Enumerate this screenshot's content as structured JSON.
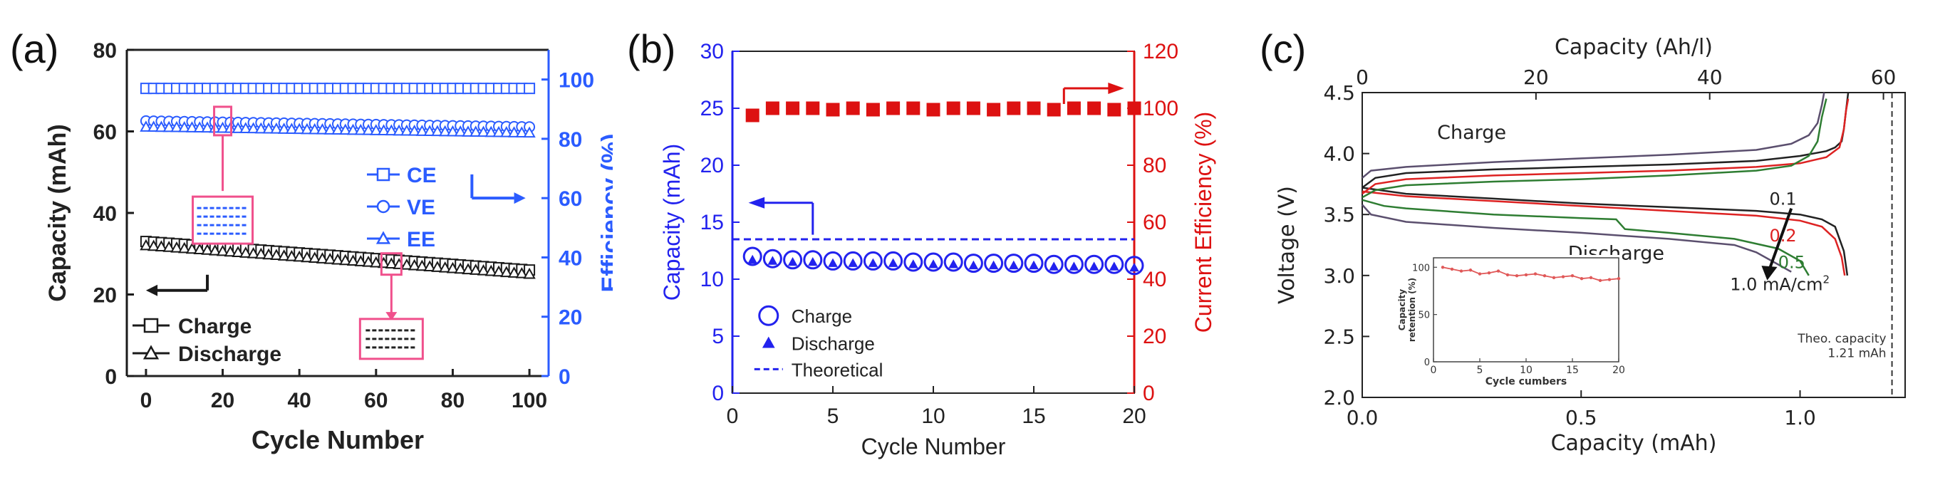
{
  "chart_data": [
    {
      "panel_label": "(a)",
      "type": "scatter",
      "title": "",
      "xlabel": "Cycle Number",
      "ylabel": "Capacity (mAh)",
      "y2label": "Efficiency (%)",
      "xlim": [
        -5,
        105
      ],
      "ylim": [
        0,
        80
      ],
      "y2lim": [
        0,
        110
      ],
      "xticks": [
        0,
        20,
        40,
        60,
        80,
        100
      ],
      "yticks": [
        0,
        20,
        40,
        60,
        80
      ],
      "y2ticks": [
        0,
        20,
        40,
        60,
        80,
        100
      ],
      "colors": {
        "left": "#1a1a1a",
        "right": "#2b5cff",
        "highlight": "#f0508c"
      },
      "series": [
        {
          "name": "Charge",
          "axis": "left",
          "marker": "square",
          "x_start": 0,
          "x_end": 100,
          "y_start": 33.0,
          "y_end": 26.0
        },
        {
          "name": "Discharge",
          "axis": "left",
          "marker": "triangle",
          "x_start": 0,
          "x_end": 100,
          "y_start": 32.0,
          "y_end": 25.0
        },
        {
          "name": "CE",
          "axis": "right",
          "marker": "square",
          "x_start": 0,
          "x_end": 100,
          "y_start": 97,
          "y_end": 97
        },
        {
          "name": "VE",
          "axis": "right",
          "marker": "circle",
          "x_start": 0,
          "x_end": 100,
          "y_start": 86,
          "y_end": 84
        },
        {
          "name": "EE",
          "axis": "right",
          "marker": "triangle",
          "x_start": 0,
          "x_end": 100,
          "y_start": 84,
          "y_end": 82
        }
      ],
      "legend_left": [
        "Charge",
        "Discharge"
      ],
      "legend_right": [
        "CE",
        "VE",
        "EE"
      ]
    },
    {
      "panel_label": "(b)",
      "type": "scatter",
      "title": "",
      "xlabel": "Cycle Number",
      "ylabel": "Capacity (mAh)",
      "y2label": "Current Efficiency (%)",
      "xlim": [
        0,
        20
      ],
      "ylim": [
        0,
        30
      ],
      "y2lim": [
        0,
        120
      ],
      "xticks": [
        0,
        5,
        10,
        15,
        20
      ],
      "yticks": [
        0,
        5,
        10,
        15,
        20,
        25,
        30
      ],
      "y2ticks": [
        0,
        20,
        40,
        60,
        80,
        100,
        120
      ],
      "colors": {
        "left": "#2222ee",
        "right": "#dd1111"
      },
      "x": [
        1,
        2,
        3,
        4,
        5,
        6,
        7,
        8,
        9,
        10,
        11,
        12,
        13,
        14,
        15,
        16,
        17,
        18,
        19,
        20
      ],
      "series": [
        {
          "name": "Charge",
          "axis": "left",
          "marker": "open-circle",
          "values": [
            12.0,
            11.8,
            11.7,
            11.7,
            11.6,
            11.6,
            11.6,
            11.6,
            11.5,
            11.5,
            11.5,
            11.4,
            11.4,
            11.4,
            11.4,
            11.3,
            11.3,
            11.3,
            11.3,
            11.2
          ]
        },
        {
          "name": "Discharge",
          "axis": "left",
          "marker": "triangle",
          "values": [
            11.7,
            11.6,
            11.5,
            11.5,
            11.4,
            11.4,
            11.4,
            11.4,
            11.3,
            11.3,
            11.3,
            11.2,
            11.2,
            11.2,
            11.2,
            11.1,
            11.1,
            11.1,
            11.1,
            11.0
          ]
        },
        {
          "name": "Current Efficiency",
          "axis": "right",
          "marker": "square",
          "values": [
            97.5,
            100,
            100,
            100,
            99.5,
            100,
            99.5,
            100,
            100,
            99.5,
            100,
            100,
            99.5,
            100,
            100,
            99.5,
            100,
            100,
            99.5,
            100
          ]
        }
      ],
      "theoretical": {
        "name": "Theoretical",
        "value": 13.5
      },
      "legend": [
        "Charge",
        "Discharge",
        "Theoretical"
      ]
    },
    {
      "panel_label": "(c)",
      "type": "line",
      "title": "",
      "xlabel": "Capacity (mAh)",
      "x2label": "Capacity (Ah/l)",
      "ylabel": "Voltage (V)",
      "xlim": [
        0,
        1.24
      ],
      "ylim": [
        2.0,
        4.5
      ],
      "xticks": [
        0.0,
        0.5,
        1.0
      ],
      "x2ticks": [
        0,
        20,
        40,
        60
      ],
      "yticks": [
        2.0,
        2.5,
        3.0,
        3.5,
        4.0,
        4.5
      ],
      "x2_per_mah": 50.4,
      "rate_unit": "mA/cm",
      "rate_superscript": "2",
      "annotations": {
        "charge": "Charge",
        "discharge": "Discharge",
        "theo_line1": "Theo. capacity",
        "theo_line2": "1.21 mAh"
      },
      "theoretical_x": 1.21,
      "series": [
        {
          "name": "0.1",
          "label": "0.1",
          "color": "#222222",
          "charge_x": [
            0,
            0.03,
            0.1,
            0.3,
            0.5,
            0.7,
            0.9,
            1.0,
            1.06,
            1.08,
            1.095,
            1.1,
            1.105,
            1.11
          ],
          "charge_y": [
            3.72,
            3.8,
            3.84,
            3.87,
            3.89,
            3.91,
            3.94,
            3.98,
            4.02,
            4.05,
            4.1,
            4.2,
            4.35,
            4.5
          ],
          "discharge_x": [
            0,
            0.1,
            0.3,
            0.5,
            0.7,
            0.9,
            1.0,
            1.05,
            1.08,
            1.1,
            1.108
          ],
          "discharge_y": [
            3.72,
            3.67,
            3.63,
            3.59,
            3.56,
            3.53,
            3.5,
            3.46,
            3.4,
            3.2,
            3.0
          ]
        },
        {
          "name": "0.2",
          "label": "0.2",
          "color": "#dd2222",
          "charge_x": [
            0,
            0.03,
            0.1,
            0.3,
            0.5,
            0.7,
            0.9,
            1.0,
            1.06,
            1.09,
            1.1,
            1.105,
            1.11
          ],
          "charge_y": [
            3.67,
            3.75,
            3.79,
            3.82,
            3.84,
            3.86,
            3.89,
            3.92,
            3.97,
            4.05,
            4.2,
            4.35,
            4.45
          ],
          "discharge_x": [
            0,
            0.1,
            0.3,
            0.5,
            0.7,
            0.9,
            1.0,
            1.05,
            1.08,
            1.095,
            1.102
          ],
          "discharge_y": [
            3.69,
            3.65,
            3.61,
            3.57,
            3.53,
            3.49,
            3.45,
            3.4,
            3.3,
            3.15,
            3.0
          ]
        },
        {
          "name": "0.5",
          "label": "0.5",
          "color": "#2e7d32",
          "charge_x": [
            0,
            0.03,
            0.1,
            0.3,
            0.5,
            0.7,
            0.9,
            0.98,
            1.02,
            1.04,
            1.05,
            1.06
          ],
          "charge_y": [
            3.64,
            3.7,
            3.74,
            3.77,
            3.79,
            3.82,
            3.86,
            3.9,
            3.98,
            4.1,
            4.3,
            4.45
          ],
          "discharge_x": [
            0,
            0.05,
            0.1,
            0.3,
            0.5,
            0.58,
            0.6,
            0.7,
            0.85,
            0.95,
            1.0,
            1.02
          ],
          "discharge_y": [
            3.62,
            3.57,
            3.55,
            3.5,
            3.47,
            3.46,
            3.38,
            3.35,
            3.3,
            3.22,
            3.12,
            3.0
          ]
        },
        {
          "name": "1.0",
          "label": "1.0",
          "color": "#5b4f6e",
          "charge_x": [
            0,
            0.02,
            0.1,
            0.3,
            0.5,
            0.7,
            0.9,
            0.98,
            1.02,
            1.04,
            1.05,
            1.055
          ],
          "charge_y": [
            3.8,
            3.86,
            3.89,
            3.93,
            3.96,
            3.99,
            4.03,
            4.08,
            4.15,
            4.25,
            4.4,
            4.5
          ],
          "discharge_x": [
            0,
            0.02,
            0.1,
            0.3,
            0.5,
            0.7,
            0.85,
            0.9,
            0.95,
            0.98
          ],
          "discharge_y": [
            3.58,
            3.5,
            3.44,
            3.39,
            3.35,
            3.3,
            3.25,
            3.19,
            3.09,
            3.03
          ]
        }
      ],
      "inset": {
        "type": "line",
        "xlabel": "Cycle cumbers",
        "ylabel_line1": "Capacity",
        "ylabel_line2": "retention (%)",
        "xlim": [
          0,
          20
        ],
        "ylim": [
          0,
          110
        ],
        "xticks": [
          0,
          5,
          10,
          15,
          20
        ],
        "yticks": [
          0,
          50,
          100
        ],
        "color": "#e05858",
        "x": [
          1,
          2,
          3,
          4,
          5,
          6,
          7,
          8,
          9,
          10,
          11,
          12,
          13,
          14,
          15,
          16,
          17,
          18,
          19,
          20
        ],
        "values": [
          100,
          98,
          96,
          97,
          93,
          94,
          96,
          92,
          91,
          92,
          93,
          91,
          89,
          90,
          91,
          88,
          89,
          86,
          87,
          88
        ]
      }
    }
  ]
}
